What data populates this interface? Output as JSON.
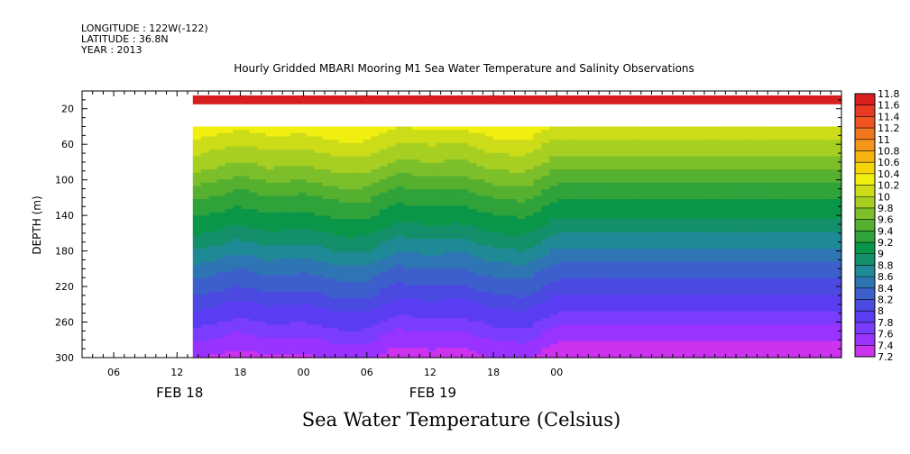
{
  "header": {
    "longitude": "LONGITUDE : 122W(-122)",
    "latitude": "LATITUDE : 36.8N",
    "year": "YEAR : 2013"
  },
  "chart_data": {
    "type": "heatmap",
    "title": "Hourly Gridded MBARI Mooring M1 Sea Water Temperature and Salinity Observations",
    "variable_label": "Sea Water Temperature (Celsius)",
    "ylabel": "DEPTH (m)",
    "y_axis": {
      "range": [
        300,
        0
      ],
      "inverted": true,
      "ticks": [
        20,
        60,
        100,
        140,
        180,
        220,
        260,
        300
      ]
    },
    "x_axis": {
      "range_hours": [
        -15,
        57
      ],
      "ticks": [
        {
          "t": -12,
          "label": "06"
        },
        {
          "t": -6,
          "label": "12"
        },
        {
          "t": 0,
          "label": "18"
        },
        {
          "t": 6,
          "label": "00"
        },
        {
          "t": 12,
          "label": "06"
        },
        {
          "t": 18,
          "label": "12"
        },
        {
          "t": 24,
          "label": "18"
        },
        {
          "t": 30,
          "label": "00"
        }
      ],
      "date_labels": [
        {
          "t": -6,
          "label": "FEB 18"
        },
        {
          "t": 18,
          "label": "FEB 19"
        }
      ]
    },
    "data_start_hour": -4.5,
    "missing_depth_band_m": [
      15,
      40
    ],
    "surface_layer": {
      "depth_range_m": [
        5,
        15
      ],
      "value": 11.7
    },
    "colorbar": {
      "levels": [
        7.2,
        7.4,
        7.6,
        7.8,
        8,
        8.2,
        8.4,
        8.6,
        8.8,
        9,
        9.2,
        9.4,
        9.6,
        9.8,
        10,
        10.2,
        10.4,
        10.6,
        10.8,
        11,
        11.2,
        11.4,
        11.6,
        11.8
      ],
      "labels": [
        "7.2",
        "7.4",
        "7.6",
        "7.8",
        "8",
        "8.2",
        "8.4",
        "8.6",
        "8.8",
        "9",
        "9.2",
        "9.4",
        "9.6",
        "9.8",
        "10",
        "10.2",
        "10.4",
        "10.6",
        "10.8",
        "11",
        "11.2",
        "11.4",
        "11.6",
        "11.8"
      ],
      "colors": [
        "#cc33ee",
        "#9933ff",
        "#7a3cff",
        "#5a3cf2",
        "#4a4ae0",
        "#3d5fcc",
        "#2e75b4",
        "#1f8a96",
        "#138f6a",
        "#0a9648",
        "#2fa33a",
        "#56b030",
        "#7cbf2a",
        "#a6cf22",
        "#ccdc18",
        "#f0ef10",
        "#f5d40a",
        "#f5b410",
        "#f5951a",
        "#f07620",
        "#ee5522",
        "#e83a22",
        "#d81e1e",
        "#b40e0e"
      ]
    },
    "profile_mean": [
      {
        "depth": 40,
        "value": 10.3
      },
      {
        "depth": 60,
        "value": 10.05
      },
      {
        "depth": 80,
        "value": 9.85
      },
      {
        "depth": 100,
        "value": 9.6
      },
      {
        "depth": 120,
        "value": 9.35
      },
      {
        "depth": 140,
        "value": 9.15
      },
      {
        "depth": 160,
        "value": 8.95
      },
      {
        "depth": 180,
        "value": 8.7
      },
      {
        "depth": 200,
        "value": 8.45
      },
      {
        "depth": 220,
        "value": 8.25
      },
      {
        "depth": 240,
        "value": 8.0
      },
      {
        "depth": 260,
        "value": 7.8
      },
      {
        "depth": 280,
        "value": 7.55
      },
      {
        "depth": 300,
        "value": 7.35
      }
    ],
    "vertical_anomaly_by_hour": [
      {
        "t": -4.5,
        "shift_m": -8
      },
      {
        "t": 0,
        "shift_m": 5
      },
      {
        "t": 3,
        "shift_m": -3
      },
      {
        "t": 6,
        "shift_m": 0
      },
      {
        "t": 10,
        "shift_m": -10
      },
      {
        "t": 12,
        "shift_m": -8
      },
      {
        "t": 15,
        "shift_m": 8
      },
      {
        "t": 18,
        "shift_m": 4
      },
      {
        "t": 21,
        "shift_m": 6
      },
      {
        "t": 24,
        "shift_m": -5
      },
      {
        "t": 27,
        "shift_m": -8
      },
      {
        "t": 30,
        "shift_m": 12
      }
    ]
  }
}
